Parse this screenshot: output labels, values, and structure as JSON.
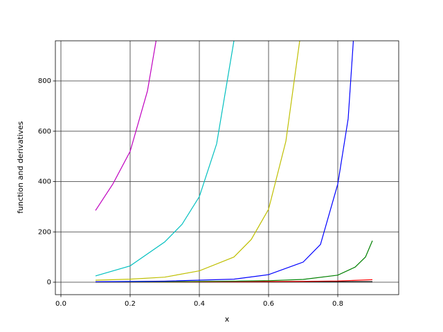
{
  "chart_data": {
    "type": "line",
    "x_label": "x",
    "y_label": "function and derivatives",
    "xlim": [
      -0.016,
      0.976
    ],
    "ylim": [
      -49.5,
      959.5
    ],
    "xticks": [
      {
        "value": 0,
        "label": "0.0"
      },
      {
        "value": 0.2,
        "label": "0.2"
      },
      {
        "value": 0.4,
        "label": "0.4"
      },
      {
        "value": 0.6,
        "label": "0.6"
      },
      {
        "value": 0.8,
        "label": "0.8"
      }
    ],
    "yticks": [
      0,
      200,
      400,
      600,
      800
    ],
    "grid": true,
    "series": [
      {
        "color": "#000000",
        "x": [
          0.1,
          0.3,
          0.5,
          0.7,
          0.9
        ],
        "values": [
          0.5,
          0.7,
          1,
          1.5,
          2.3
        ]
      },
      {
        "color": "#ff0000",
        "x": [
          0.1,
          0.3,
          0.5,
          0.7,
          0.8,
          0.9
        ],
        "values": [
          1.1,
          1.4,
          2,
          3.3,
          5,
          10
        ]
      },
      {
        "color": "#008000",
        "x": [
          0.1,
          0.3,
          0.5,
          0.6,
          0.7,
          0.8,
          0.85,
          0.88,
          0.9
        ],
        "values": [
          1.2,
          2,
          4,
          6,
          11,
          28,
          60,
          100,
          165
        ]
      },
      {
        "color": "#0000ff",
        "x": [
          0.1,
          0.3,
          0.5,
          0.6,
          0.7,
          0.75,
          0.8,
          0.83,
          0.845
        ],
        "values": [
          1.5,
          4,
          12,
          30,
          80,
          150,
          390,
          650,
          960
        ]
      },
      {
        "color": "#bfbf00",
        "x": [
          0.1,
          0.2,
          0.3,
          0.4,
          0.5,
          0.55,
          0.6,
          0.65,
          0.69
        ],
        "values": [
          8,
          12,
          20,
          45,
          100,
          170,
          290,
          560,
          960
        ]
      },
      {
        "color": "#00bfbf",
        "x": [
          0.1,
          0.2,
          0.3,
          0.35,
          0.4,
          0.45,
          0.5
        ],
        "values": [
          25,
          65,
          160,
          230,
          340,
          550,
          960
        ]
      },
      {
        "color": "#bf00bf",
        "x": [
          0.1,
          0.15,
          0.2,
          0.25,
          0.275
        ],
        "values": [
          285,
          390,
          520,
          760,
          960
        ]
      }
    ]
  }
}
